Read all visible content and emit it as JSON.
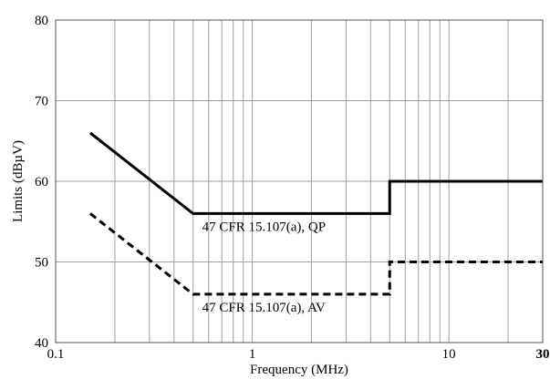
{
  "chart_data": {
    "type": "line",
    "title": "",
    "xlabel": "Frequency (MHz)",
    "ylabel": "Limits (dBµV)",
    "xscale": "log",
    "xlim": [
      0.1,
      30
    ],
    "ylim": [
      40,
      80
    ],
    "grid": true,
    "x_ticks": [
      {
        "value": 0.1,
        "label": "0.1"
      },
      {
        "value": 1,
        "label": "1"
      },
      {
        "value": 10,
        "label": "10"
      },
      {
        "value": 30,
        "label": "30"
      }
    ],
    "y_ticks": [
      {
        "value": 40,
        "label": "40"
      },
      {
        "value": 50,
        "label": "50"
      },
      {
        "value": 60,
        "label": "60"
      },
      {
        "value": 70,
        "label": "70"
      },
      {
        "value": 80,
        "label": "80"
      }
    ],
    "series": [
      {
        "name": "47 CFR 15.107(a), QP",
        "style": "solid",
        "points": [
          [
            0.15,
            66
          ],
          [
            0.5,
            56
          ],
          [
            5,
            56
          ],
          [
            5,
            60
          ],
          [
            30,
            60
          ]
        ]
      },
      {
        "name": "47 CFR 15.107(a), AV",
        "style": "dashed",
        "points": [
          [
            0.15,
            56
          ],
          [
            0.5,
            46
          ],
          [
            5,
            46
          ],
          [
            5,
            50
          ],
          [
            30,
            50
          ]
        ]
      }
    ]
  }
}
